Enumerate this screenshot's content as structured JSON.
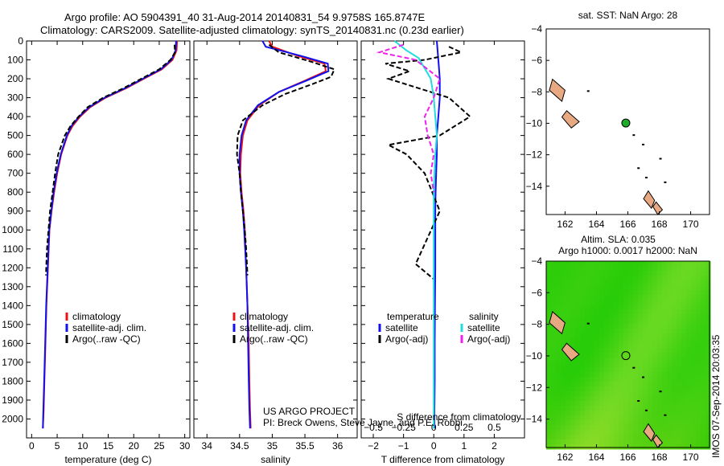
{
  "header": {
    "line1": "Argo profile: AO 5904391_40 31-Aug-2014 20140831_54 9.9758S 165.8747E",
    "line2": "Climatology: CARS2009. Satellite-adjusted climatology: synTS_20140831.nc (0.23d earlier)"
  },
  "credits": {
    "line1": "US ARGO PROJECT",
    "line2": "PI: Breck Owens, Steve Jayne, and P.E. Robbi"
  },
  "side_stamp": "IMOS 07-Sep-2014 20:03:35",
  "colors": {
    "climatology": "#ee1111",
    "satellite": "#1111ee",
    "argo": "#000000",
    "sal_satellite": "#22dddd",
    "sal_argo": "#ee22ee",
    "land": "#e8a882",
    "argo_marker": "#1faa2a"
  },
  "chart_data": [
    {
      "type": "line",
      "panel": "temperature",
      "xlabel": "temperature (deg C)",
      "ylabel": "",
      "xlim": [
        -1,
        31
      ],
      "ylim": [
        2100,
        0
      ],
      "x_ticks": [
        0,
        5,
        10,
        15,
        20,
        25,
        30
      ],
      "y_ticks": [
        0,
        100,
        200,
        300,
        400,
        500,
        600,
        700,
        800,
        900,
        1000,
        1100,
        1200,
        1300,
        1400,
        1500,
        1600,
        1700,
        1800,
        1900,
        2000
      ],
      "legend": [
        "climatology",
        "satellite-adj. clim.",
        "Argo(..raw -QC)"
      ],
      "legend_position": "bottom-center",
      "series": [
        {
          "name": "climatology",
          "color": "#ee1111",
          "dash": "none",
          "x": [
            28.5,
            28.4,
            27.6,
            25.5,
            22.0,
            18.5,
            14.5,
            11.5,
            9.5,
            8.0,
            7.0,
            5.8,
            5.0,
            4.4,
            3.9,
            3.5,
            3.2,
            2.9,
            2.7,
            2.5,
            2.35,
            2.2
          ],
          "y": [
            0,
            50,
            100,
            150,
            200,
            250,
            300,
            350,
            400,
            450,
            500,
            600,
            700,
            800,
            900,
            1000,
            1200,
            1400,
            1600,
            1800,
            1950,
            2050
          ]
        },
        {
          "name": "satellite-adj. clim.",
          "color": "#1111ee",
          "dash": "none",
          "x": [
            28.3,
            28.2,
            27.4,
            25.3,
            21.8,
            18.3,
            14.3,
            11.3,
            9.3,
            7.8,
            6.9,
            5.7,
            4.9,
            4.3,
            3.85,
            3.45,
            3.15,
            2.85,
            2.65,
            2.45,
            2.3,
            2.2
          ],
          "y": [
            0,
            50,
            100,
            150,
            200,
            250,
            300,
            350,
            400,
            450,
            500,
            600,
            700,
            800,
            900,
            1000,
            1200,
            1400,
            1600,
            1800,
            1950,
            2050
          ]
        },
        {
          "name": "Argo(..raw -QC)",
          "color": "#000000",
          "dash": "6,3",
          "x": [
            28.0,
            28.1,
            27.2,
            25.0,
            21.5,
            18.0,
            14.0,
            11.0,
            9.2,
            7.6,
            6.5,
            5.2,
            4.6,
            4.1,
            3.6,
            3.3,
            3.0,
            2.8
          ],
          "y": [
            20,
            60,
            100,
            150,
            200,
            250,
            300,
            350,
            400,
            450,
            500,
            600,
            700,
            800,
            900,
            1000,
            1100,
            1240
          ]
        }
      ]
    },
    {
      "type": "line",
      "panel": "salinity",
      "xlabel": "salinity",
      "ylabel": "",
      "xlim": [
        33.8,
        36.3
      ],
      "ylim": [
        2100,
        0
      ],
      "x_ticks": [
        34,
        34.5,
        35,
        35.5,
        36
      ],
      "legend": [
        "climatology",
        "satellite-adj. clim.",
        "Argo(..raw -QC)"
      ],
      "legend_position": "bottom-center",
      "series": [
        {
          "name": "climatology",
          "color": "#ee1111",
          "dash": "none",
          "x": [
            34.95,
            35.0,
            35.4,
            35.8,
            35.82,
            35.5,
            35.1,
            34.8,
            34.62,
            34.55,
            34.52,
            34.51,
            34.53,
            34.56,
            34.58,
            34.6,
            34.62,
            34.64,
            34.65,
            34.66,
            34.67
          ],
          "y": [
            0,
            30,
            80,
            120,
            160,
            210,
            270,
            340,
            420,
            500,
            600,
            700,
            800,
            900,
            1000,
            1200,
            1400,
            1600,
            1800,
            1950,
            2050
          ]
        },
        {
          "name": "satellite-adj. clim.",
          "color": "#1111ee",
          "dash": "none",
          "x": [
            34.85,
            34.9,
            35.45,
            35.85,
            35.86,
            35.52,
            35.1,
            34.78,
            34.6,
            34.53,
            34.5,
            34.5,
            34.52,
            34.55,
            34.57,
            34.6,
            34.62,
            34.63,
            34.64,
            34.65,
            34.66
          ],
          "y": [
            0,
            30,
            80,
            120,
            160,
            210,
            270,
            340,
            420,
            500,
            600,
            700,
            800,
            900,
            1000,
            1200,
            1400,
            1600,
            1800,
            1950,
            2050
          ]
        },
        {
          "name": "Argo(..raw -QC)",
          "color": "#000000",
          "dash": "6,3",
          "x": [
            34.95,
            35.1,
            35.6,
            35.95,
            35.9,
            35.6,
            35.2,
            34.85,
            34.55,
            34.47,
            34.46,
            34.5,
            34.52,
            34.55,
            34.58,
            34.6,
            34.62
          ],
          "y": [
            20,
            60,
            110,
            150,
            190,
            230,
            280,
            340,
            420,
            500,
            600,
            700,
            800,
            900,
            1000,
            1100,
            1240
          ]
        }
      ]
    },
    {
      "type": "line",
      "panel": "differences",
      "xlabel": "T difference from climatology",
      "xlabel_top": "S difference from climatology",
      "xlim": [
        -2.4,
        3.0
      ],
      "ylim": [
        2100,
        0
      ],
      "x_ticks": [
        -2,
        -1,
        0,
        1,
        2
      ],
      "x_ticks_top": [
        -0.5,
        -0.25,
        0,
        0.25,
        0.5
      ],
      "legend": [
        "temperature",
        "satellite",
        "Argo(-adj)",
        "salinity",
        "satellite",
        "Argo(-adj)"
      ],
      "legend_position": "bottom-center",
      "series": [
        {
          "name": "satellite",
          "color": "#1111ee",
          "dash": "none",
          "x": [
            0.1,
            0.15,
            0.2,
            0.2,
            0.15,
            0.1,
            0.1,
            0.08,
            0.06,
            0.05,
            0.05,
            0.05,
            0.04,
            0.03,
            0.03,
            0.02,
            0.02
          ],
          "y": [
            0,
            100,
            200,
            300,
            400,
            500,
            600,
            700,
            800,
            900,
            1000,
            1200,
            1400,
            1600,
            1800,
            1950,
            2050
          ]
        },
        {
          "name": "Argo(-adj)",
          "color": "#000000",
          "dash": "6,3",
          "x": [
            0.5,
            0.9,
            -0.3,
            -1.6,
            -0.8,
            -1.5,
            -0.5,
            0.5,
            1.2,
            0.2,
            -1.5,
            -0.9,
            -0.3,
            0.2,
            -0.6,
            0.0
          ],
          "y": [
            30,
            60,
            100,
            120,
            160,
            200,
            250,
            300,
            400,
            500,
            550,
            600,
            700,
            900,
            1180,
            1260
          ]
        },
        {
          "name": "satellite",
          "color": "#22dddd",
          "dash": "none",
          "x": [
            -1.3,
            -0.9,
            -0.5,
            -0.1,
            0.0,
            0.05,
            0.1,
            0.05,
            0.0,
            0.0,
            0.0,
            0.0,
            0.0,
            0.0
          ],
          "y": [
            0,
            50,
            90,
            200,
            300,
            400,
            500,
            600,
            800,
            1000,
            1400,
            1700,
            1950,
            2050
          ]
        },
        {
          "name": "Argo(-adj)",
          "color": "#ee22ee",
          "dash": "6,3",
          "x": [
            -1.0,
            -1.8,
            -0.6,
            -0.2,
            0.2,
            0.0,
            -0.3,
            -0.2,
            0.0,
            -0.1,
            0.0
          ],
          "y": [
            20,
            60,
            100,
            150,
            200,
            300,
            400,
            500,
            600,
            700,
            800
          ]
        }
      ]
    },
    {
      "type": "scatter",
      "panel": "sst_map",
      "title": "sat. SST: NaN Argo: 28",
      "xlim": [
        160.8,
        171.2
      ],
      "ylim": [
        -15.8,
        -4.0
      ],
      "x_ticks": [
        162,
        164,
        166,
        168,
        170
      ],
      "y_ticks": [
        -4,
        -6,
        -8,
        -10,
        -12,
        -14
      ],
      "point": {
        "x": 165.87,
        "y": -9.98,
        "color": "#1faa2a"
      }
    },
    {
      "type": "heatmap",
      "panel": "sla_map",
      "title_line1": "Altim. SLA: 0.035",
      "title_line2": "Argo h1000: 0.0017 h2000: NaN",
      "xlim": [
        160.8,
        171.2
      ],
      "ylim": [
        -15.8,
        -4.0
      ],
      "x_ticks": [
        162,
        164,
        166,
        168,
        170
      ],
      "y_ticks": [
        -4,
        -6,
        -8,
        -10,
        -12,
        -14
      ],
      "point": {
        "x": 165.87,
        "y": -9.98
      }
    }
  ]
}
